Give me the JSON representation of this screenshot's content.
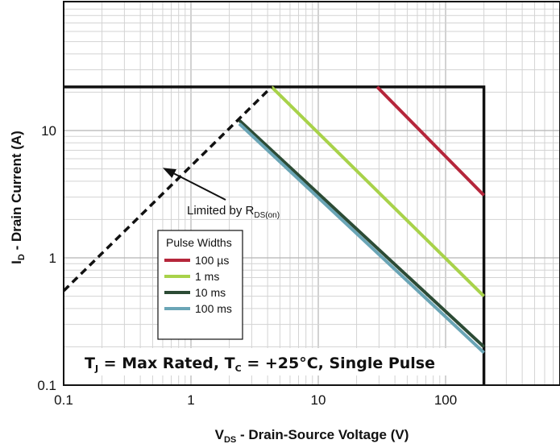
{
  "chart_data": {
    "type": "line",
    "xscale": "log",
    "yscale": "log",
    "xlim": [
      0.1,
      1000
    ],
    "ylim": [
      0.1,
      100
    ],
    "grid": true,
    "x_ticks": [
      "0.1",
      "1",
      "10",
      "100"
    ],
    "y_ticks": [
      "0.1",
      "1",
      "10"
    ],
    "xlabel": {
      "main": "V",
      "sub": "DS",
      "rest": " - Drain-Source Voltage (V)"
    },
    "ylabel": {
      "main": "I",
      "sub": "D",
      "rest": " - Drain Current (A)"
    },
    "soa_box": {
      "v_max": 200,
      "i_max": 22
    },
    "rds_on_limit": {
      "label_main": "Limited by R",
      "label_sub": "DS(on)",
      "points": [
        [
          0.1,
          0.55
        ],
        [
          4.3,
          22
        ]
      ],
      "arrow_to": [
        0.6,
        5.1
      ]
    },
    "legend": {
      "title": "Pulse Widths",
      "position": "lower-left"
    },
    "series": [
      {
        "name": "100 µs",
        "color": "#b5263b",
        "points": [
          [
            29,
            22
          ],
          [
            200,
            3.1
          ]
        ]
      },
      {
        "name": "1 ms",
        "color": "#a8d24a",
        "points": [
          [
            4.3,
            22
          ],
          [
            200,
            0.5
          ]
        ]
      },
      {
        "name": "10 ms",
        "color": "#2c4b35",
        "points": [
          [
            2.4,
            12
          ],
          [
            200,
            0.2
          ]
        ]
      },
      {
        "name": "100 ms",
        "color": "#6aa5b6",
        "points": [
          [
            2.4,
            11.3
          ],
          [
            200,
            0.18
          ]
        ]
      }
    ],
    "conditions": {
      "t1": "T",
      "s1": "J",
      "m1": " = Max Rated, T",
      "s2": "C",
      "m2": " = +25°C, Single Pulse"
    }
  }
}
